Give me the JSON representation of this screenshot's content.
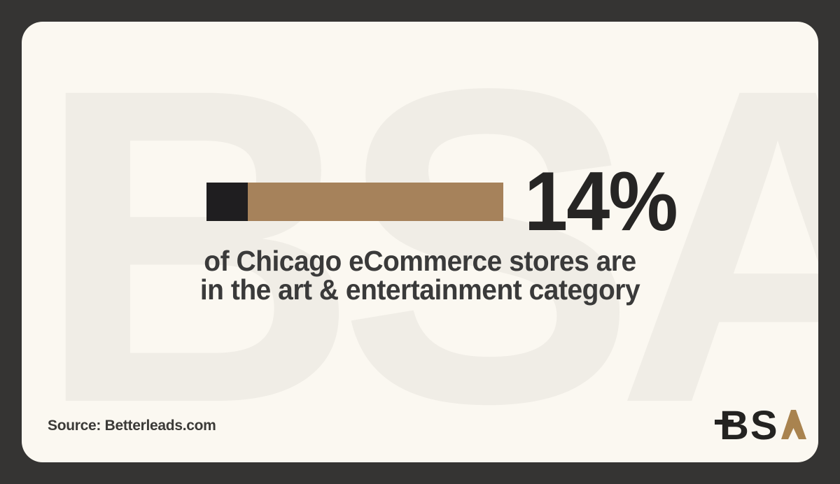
{
  "frame": {
    "background": "#353433"
  },
  "card": {
    "background": "#fbf8f1",
    "watermark_text": "BSA",
    "watermark_color": "#f0ede6"
  },
  "chart_data": {
    "type": "bar",
    "categories": [
      "Chicago eCommerce stores in the art & entertainment category"
    ],
    "values": [
      14
    ],
    "value_labels": [
      "14%"
    ],
    "xlim": [
      0,
      100
    ],
    "title": "14% of Chicago eCommerce stores are in the art & entertainment category",
    "xlabel": "",
    "ylabel": "",
    "grid": false,
    "legend_position": "none",
    "filled_color": "#1f1e20",
    "remainder_color": "#a6825b"
  },
  "stat": {
    "percent_label": "14%",
    "line1": "of Chicago eCommerce stores are",
    "line2": "in the art & entertainment category"
  },
  "source": {
    "text": "Source: Betterleads.com"
  },
  "logo": {
    "letter_b": "B",
    "letter_s": "S",
    "letter_a_name": "gold-letter-a",
    "ink_color": "#242321",
    "gold_color": "#a9834f"
  }
}
